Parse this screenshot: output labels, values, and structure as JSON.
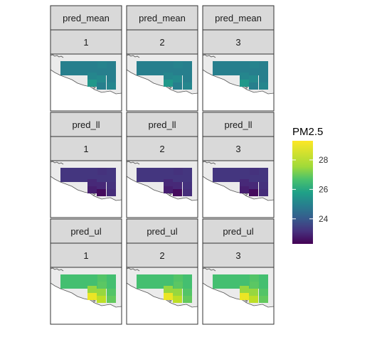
{
  "chart_data": {
    "type": "heatmap",
    "facet_rows": [
      "pred_mean",
      "pred_ll",
      "pred_ul"
    ],
    "facet_cols": [
      "1",
      "2",
      "3"
    ],
    "legend": {
      "title": "PM2.5",
      "ticks": [
        24,
        26,
        28
      ],
      "range": [
        22.3,
        29.3
      ],
      "colormap": "viridis",
      "position": "right"
    },
    "cell_values": {
      "pred_mean": [
        25.3,
        25.3,
        25.3,
        25.3,
        25.4,
        25.3,
        25.5,
        26.0,
        25.6,
        25.3,
        25.3,
        25.3,
        25.5
      ],
      "pred_ll": [
        23.4,
        23.4,
        23.4,
        23.4,
        23.3,
        23.4,
        23.1,
        22.9,
        23.1,
        23.4,
        23.3,
        22.5,
        23.2
      ],
      "pred_ul": [
        27.2,
        27.2,
        27.2,
        27.2,
        27.4,
        27.5,
        28.2,
        29.1,
        28.2,
        27.2,
        27.4,
        28.6,
        27.6
      ]
    },
    "colors": {
      "land": "#ebebeb",
      "water": "#ffffff",
      "coast": "#555555",
      "strip_bg": "#d9d9d9",
      "panel_border": "#333333"
    }
  }
}
